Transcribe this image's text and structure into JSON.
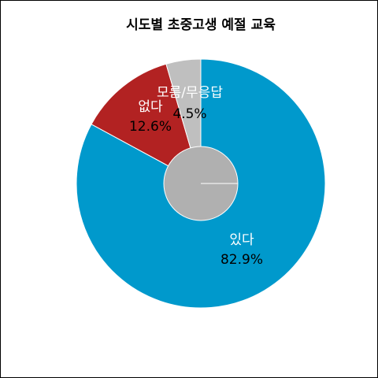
{
  "chart_data": {
    "type": "pie",
    "title": "시도별 초중고생 예절 교육",
    "center_color": "#b0b0b0",
    "slices": [
      {
        "label": "있다",
        "value": 82.9,
        "pct_text": "82.9%",
        "color": "#0099cc",
        "label_color": "#ffffff",
        "pct_color": "#000000"
      },
      {
        "label": "없다",
        "value": 12.6,
        "pct_text": "12.6%",
        "color": "#b22222",
        "label_color": "#ffffff",
        "pct_color": "#000000"
      },
      {
        "label": "모름/무응답",
        "value": 4.5,
        "pct_text": "4.5%",
        "color": "#bfbfbf",
        "label_color": "#ffffff",
        "pct_color": "#000000"
      }
    ]
  }
}
